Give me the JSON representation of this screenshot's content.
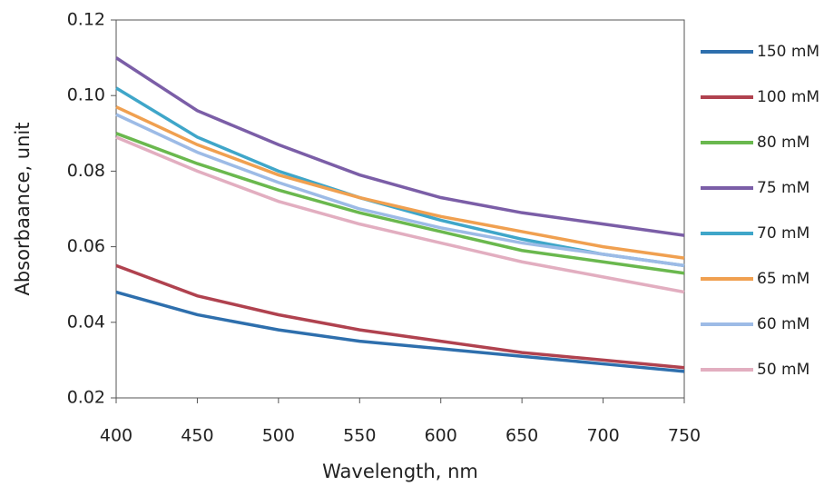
{
  "chart_data": {
    "type": "line",
    "xlabel": "Wavelength, nm",
    "ylabel": "Absorbaance, unit",
    "x": [
      400,
      450,
      500,
      550,
      600,
      650,
      700,
      750
    ],
    "xlim": [
      400,
      750
    ],
    "xticks": [
      400,
      450,
      500,
      550,
      600,
      650,
      700,
      750
    ],
    "ylim": [
      0.02,
      0.12
    ],
    "yticks": [
      0.02,
      0.04,
      0.06,
      0.08,
      {
        "value": 0.1,
        "label": "0.10"
      },
      0.12
    ],
    "legend": "right",
    "series": [
      {
        "name": "150 mM",
        "color": "#2e6fad",
        "values": [
          0.048,
          0.042,
          0.038,
          0.035,
          0.033,
          0.031,
          0.029,
          0.027
        ]
      },
      {
        "name": "100 mM",
        "color": "#b0424f",
        "values": [
          0.055,
          0.047,
          0.042,
          0.038,
          0.035,
          0.032,
          0.03,
          0.028
        ]
      },
      {
        "name": "80 mM",
        "color": "#6ab84e",
        "values": [
          0.09,
          0.082,
          0.075,
          0.069,
          0.064,
          0.059,
          0.056,
          0.053
        ]
      },
      {
        "name": "75 mM",
        "color": "#7b5ea7",
        "values": [
          0.11,
          0.096,
          0.087,
          0.079,
          0.073,
          0.069,
          0.066,
          0.063
        ]
      },
      {
        "name": "70 mM",
        "color": "#3fa6c9",
        "values": [
          0.102,
          0.089,
          0.08,
          0.073,
          0.067,
          0.062,
          0.058,
          0.055
        ]
      },
      {
        "name": "65 mM",
        "color": "#f0a050",
        "values": [
          0.097,
          0.087,
          0.079,
          0.073,
          0.068,
          0.064,
          0.06,
          0.057
        ]
      },
      {
        "name": "60 mM",
        "color": "#9dbbe6",
        "values": [
          0.095,
          0.085,
          0.077,
          0.07,
          0.065,
          0.061,
          0.058,
          0.055
        ]
      },
      {
        "name": "50 mM",
        "color": "#e2aec0",
        "values": [
          0.089,
          0.08,
          0.072,
          0.066,
          0.061,
          0.056,
          0.052,
          0.048
        ]
      }
    ]
  }
}
